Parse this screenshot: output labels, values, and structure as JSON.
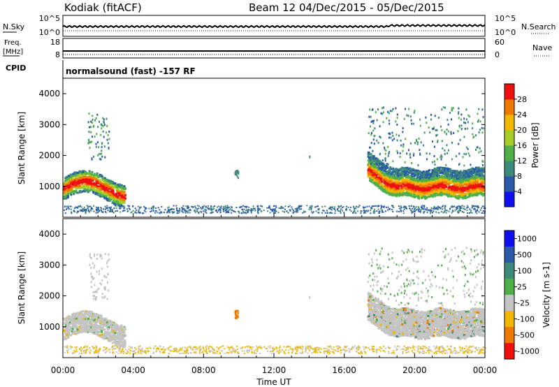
{
  "header": {
    "station": "Kodiak (fitACF)",
    "beam_info": "Beam 12  04/Dec/2015 - 05/Dec/2015"
  },
  "status_panels": {
    "nsky_label": "N.Sky",
    "nsearch_label": "N.Search",
    "noise_ticks_left": [
      "10^5",
      "10^0"
    ],
    "noise_ticks_right": [
      "10^5",
      "10^0"
    ],
    "freq_label_line1": "Freq.",
    "freq_label_line2": "[MHz]",
    "freq_ticks": [
      "18",
      "8"
    ],
    "nave_label": "Nave",
    "nave_ticks": [
      "60",
      "0"
    ],
    "cpid_label": "CPID",
    "cpid_value": "normalsound (fast) -157 RF"
  },
  "colors": {
    "power_scale": [
      "#1010ee",
      "#2a5aa8",
      "#3e8a7a",
      "#4fb04a",
      "#a8cc2a",
      "#f0b800",
      "#f07a00",
      "#ee1010"
    ],
    "velocity_scale": [
      "#1010ee",
      "#2a5aa8",
      "#3e8a7a",
      "#4fb04a",
      "#c4c4c4",
      "#f0b800",
      "#f07a00",
      "#ee1010"
    ]
  },
  "chart_data": [
    {
      "type": "heatmap",
      "panel": "power",
      "ylabel": "Slant Range [km]",
      "yticks": [
        "4000",
        "3000",
        "2000",
        "1000"
      ],
      "ylim": [
        0,
        4500
      ],
      "colorbar_label": "Power [dB]",
      "colorbar_ticks": [
        "28",
        "24",
        "20",
        "16",
        "12",
        "8",
        "4"
      ],
      "clim": [
        0,
        32
      ]
    },
    {
      "type": "heatmap",
      "panel": "velocity",
      "ylabel": "Slant Range [km]",
      "yticks": [
        "4000",
        "3000",
        "2000",
        "1000"
      ],
      "ylim": [
        0,
        4500
      ],
      "colorbar_label": "Velocity [m s-1]",
      "colorbar_ticks": [
        "1000",
        "500",
        "100",
        "25",
        "-25",
        "-100",
        "-500",
        "-1000"
      ]
    }
  ],
  "x_axis": {
    "label": "Time UT",
    "ticks": [
      "00:00",
      "04:00",
      "08:00",
      "12:00",
      "16:00",
      "20:00",
      "00:00"
    ],
    "xlim_hours": [
      0,
      24
    ]
  }
}
